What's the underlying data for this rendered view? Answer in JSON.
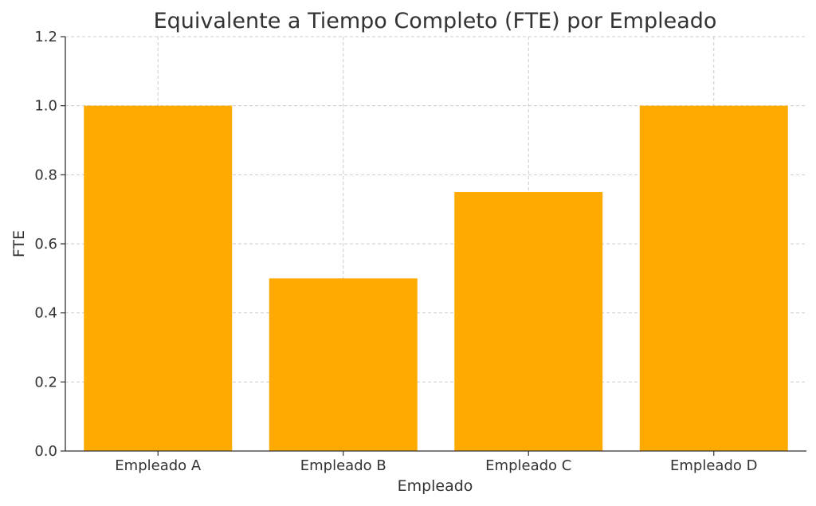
{
  "chart_data": {
    "type": "bar",
    "title": "Equivalente a Tiempo Completo (FTE) por Empleado",
    "xlabel": "Empleado",
    "ylabel": "FTE",
    "categories": [
      "Empleado A",
      "Empleado B",
      "Empleado C",
      "Empleado D"
    ],
    "values": [
      1.0,
      0.5,
      0.75,
      1.0
    ],
    "ylim": [
      0,
      1.2
    ],
    "yticks": [
      "0.0",
      "0.2",
      "0.4",
      "0.6",
      "0.8",
      "1.0",
      "1.2"
    ],
    "grid": true,
    "colors": {
      "bar": "#FFAA00",
      "grid": "#CCCCCC",
      "axis": "#333333"
    }
  }
}
